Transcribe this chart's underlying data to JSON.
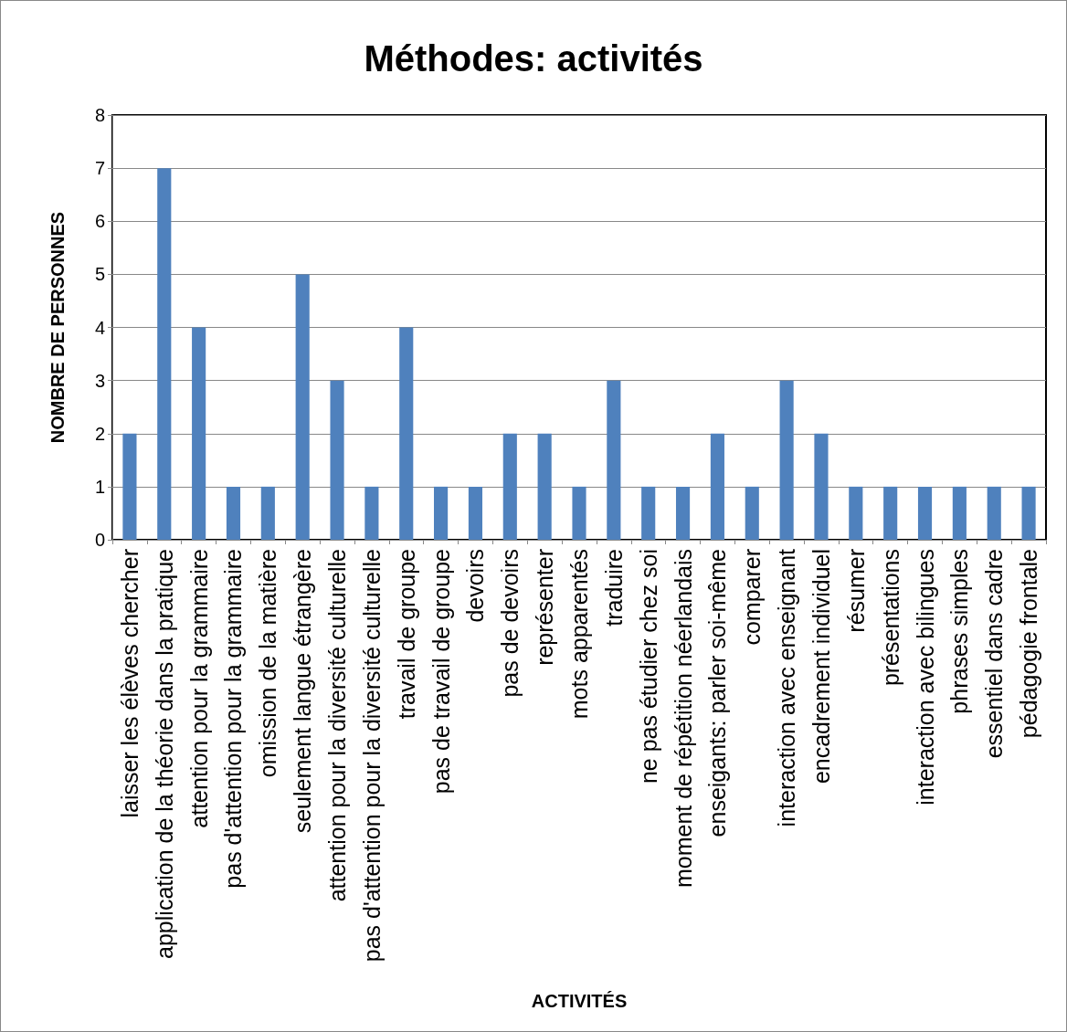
{
  "chart_data": {
    "type": "bar",
    "title": "Méthodes: activités",
    "xlabel": "ACTIVITÉS",
    "ylabel": "NOMBRE DE PERSONNES",
    "categories": [
      "laisser les élèves chercher",
      "application de la théorie dans la pratique",
      "attention pour la grammaire",
      "pas d'attention pour la grammaire",
      "omission de la matière",
      "seulement langue étrangère",
      "attention pour la diversité culturelle",
      "pas d'attention pour la diversité culturelle",
      "travail de groupe",
      "pas de travail de groupe",
      "devoirs",
      "pas de devoirs",
      "représenter",
      "mots apparentés",
      "traduire",
      "ne pas étudier chez soi",
      "moment de répétition néerlandais",
      "enseigants: parler soi-même",
      "comparer",
      "interaction avec enseignant",
      "encadrement individuel",
      "résumer",
      "présentations",
      "interaction avec bilingues",
      "phrases simples",
      "essentiel dans cadre",
      "pédagogie frontale"
    ],
    "values": [
      2,
      7,
      4,
      1,
      1,
      5,
      3,
      1,
      4,
      1,
      1,
      2,
      2,
      1,
      3,
      1,
      1,
      2,
      1,
      3,
      2,
      1,
      1,
      1,
      1,
      1,
      1
    ],
    "color": "#4f81bd",
    "ylim": [
      0,
      8
    ],
    "yticks": [
      0,
      1,
      2,
      3,
      4,
      5,
      6,
      7,
      8
    ],
    "grid": "y"
  }
}
